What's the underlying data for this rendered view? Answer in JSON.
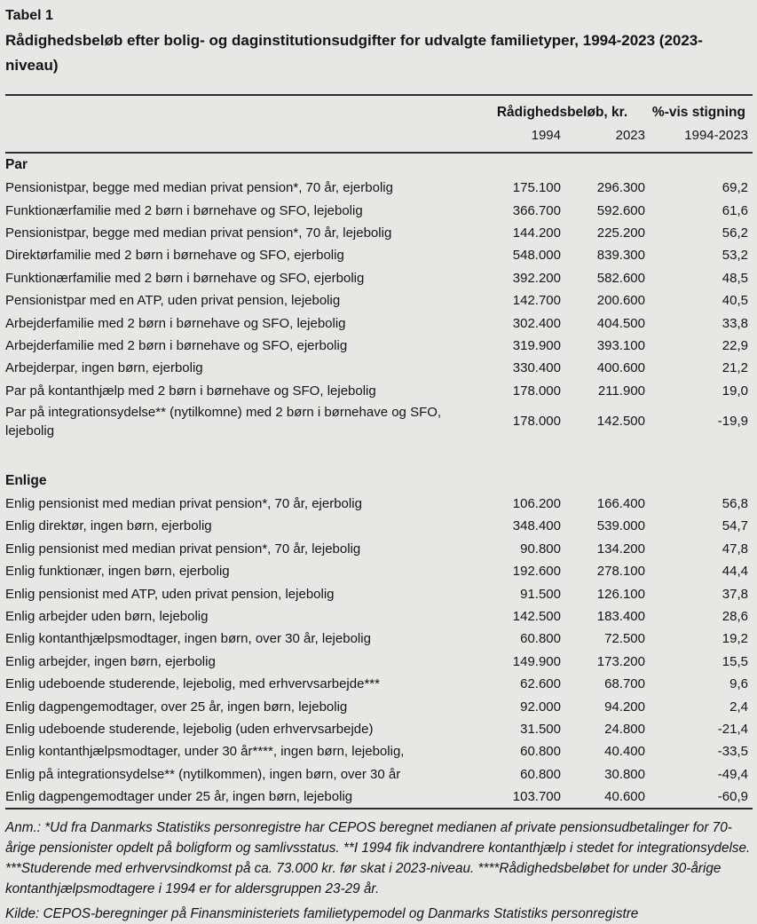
{
  "caption": {
    "label": "Tabel 1",
    "title": "Rådighedsbeløb efter bolig- og daginstitutionsudgifter for udvalgte familietyper, 1994-2023 (2023-niveau)"
  },
  "table": {
    "group_header": "Rådighedsbeløb, kr.",
    "pct_header": "%-vis stigning",
    "year1": "1994",
    "year2": "2023",
    "period": "1994-2023",
    "sections": [
      {
        "name": "Par",
        "rows": [
          {
            "label": "Pensionistpar, begge med median privat pension*, 70 år, ejerbolig",
            "v1994": "175.100",
            "v2023": "296.300",
            "pct": "69,2"
          },
          {
            "label": "Funktionærfamilie med 2 børn i børnehave og SFO, lejebolig",
            "v1994": "366.700",
            "v2023": "592.600",
            "pct": "61,6"
          },
          {
            "label": "Pensionistpar, begge med median privat pension*, 70 år, lejebolig",
            "v1994": "144.200",
            "v2023": "225.200",
            "pct": "56,2"
          },
          {
            "label": "Direktørfamilie med 2 børn i børnehave og SFO, ejerbolig",
            "v1994": "548.000",
            "v2023": "839.300",
            "pct": "53,2"
          },
          {
            "label": "Funktionærfamilie med 2 børn i børnehave og SFO, ejerbolig",
            "v1994": "392.200",
            "v2023": "582.600",
            "pct": "48,5"
          },
          {
            "label": "Pensionistpar med en ATP, uden privat pension, lejebolig",
            "v1994": "142.700",
            "v2023": "200.600",
            "pct": "40,5"
          },
          {
            "label": "Arbejderfamilie med 2 børn i børnehave og SFO, lejebolig",
            "v1994": "302.400",
            "v2023": "404.500",
            "pct": "33,8"
          },
          {
            "label": "Arbejderfamilie med 2 børn i børnehave og SFO, ejerbolig",
            "v1994": "319.900",
            "v2023": "393.100",
            "pct": "22,9"
          },
          {
            "label": "Arbejderpar, ingen børn, ejerbolig",
            "v1994": "330.400",
            "v2023": "400.600",
            "pct": "21,2"
          },
          {
            "label": "Par på kontanthjælp med 2 børn i børnehave og SFO, lejebolig",
            "v1994": "178.000",
            "v2023": "211.900",
            "pct": "19,0"
          },
          {
            "label": "Par på integrationsydelse** (nytilkomne) med 2 børn i børnehave og SFO, lejebolig",
            "v1994": "178.000",
            "v2023": "142.500",
            "pct": "-19,9"
          }
        ]
      },
      {
        "name": "Enlige",
        "rows": [
          {
            "label": "Enlig pensionist med median privat pension*, 70 år, ejerbolig",
            "v1994": "106.200",
            "v2023": "166.400",
            "pct": "56,8"
          },
          {
            "label": "Enlig direktør, ingen børn, ejerbolig",
            "v1994": "348.400",
            "v2023": "539.000",
            "pct": "54,7"
          },
          {
            "label": "Enlig pensionist med median privat pension*, 70 år, lejebolig",
            "v1994": "90.800",
            "v2023": "134.200",
            "pct": "47,8"
          },
          {
            "label": "Enlig funktionær, ingen børn, ejerbolig",
            "v1994": "192.600",
            "v2023": "278.100",
            "pct": "44,4"
          },
          {
            "label": "Enlig pensionist med ATP, uden privat pension, lejebolig",
            "v1994": "91.500",
            "v2023": "126.100",
            "pct": "37,8"
          },
          {
            "label": "Enlig arbejder uden børn, lejebolig",
            "v1994": "142.500",
            "v2023": "183.400",
            "pct": "28,6"
          },
          {
            "label": "Enlig kontanthjælpsmodtager, ingen børn, over 30 år, lejebolig",
            "v1994": "60.800",
            "v2023": "72.500",
            "pct": "19,2"
          },
          {
            "label": "Enlig arbejder, ingen børn, ejerbolig",
            "v1994": "149.900",
            "v2023": "173.200",
            "pct": "15,5"
          },
          {
            "label": "Enlig udeboende studerende, lejebolig, med erhvervsarbejde***",
            "v1994": "62.600",
            "v2023": "68.700",
            "pct": "9,6"
          },
          {
            "label": "Enlig dagpengemodtager, over 25 år, ingen børn, lejebolig",
            "v1994": "92.000",
            "v2023": "94.200",
            "pct": "2,4"
          },
          {
            "label": "Enlig udeboende studerende, lejebolig (uden erhvervsarbejde)",
            "v1994": "31.500",
            "v2023": "24.800",
            "pct": "-21,4"
          },
          {
            "label": "Enlig kontanthjælpsmodtager, under 30 år****, ingen børn, lejebolig,",
            "v1994": "60.800",
            "v2023": "40.400",
            "pct": "-33,5"
          },
          {
            "label": "Enlig på integrationsydelse** (nytilkommen), ingen børn, over 30 år",
            "v1994": "60.800",
            "v2023": "30.800",
            "pct": "-49,4"
          },
          {
            "label": "Enlig dagpengemodtager under 25 år, ingen børn, lejebolig",
            "v1994": "103.700",
            "v2023": "40.600",
            "pct": "-60,9"
          }
        ]
      }
    ]
  },
  "notes": {
    "anm": "Anm.: *Ud fra Danmarks Statistiks personregistre har CEPOS beregnet medianen af private pensionsudbetalinger for 70-årige pensionister opdelt på boligform og samlivsstatus. **I 1994 fik indvandrere kontanthjælp i stedet for integrationsydelse.  ***Studerende med erhvervsindkomst på ca. 73.000 kr. før skat i 2023-niveau. ****Rådighedsbeløbet for under 30-årige kontanthjælpsmodtagere i 1994 er for aldersgruppen 23-29 år.",
    "kilde": "Kilde: CEPOS-beregninger på Finansministeriets familietypemodel og Danmarks Statistiks personregistre"
  },
  "colors": {
    "background": "#e8e7e4",
    "text": "#141414",
    "rule": "#2e2e2e"
  }
}
